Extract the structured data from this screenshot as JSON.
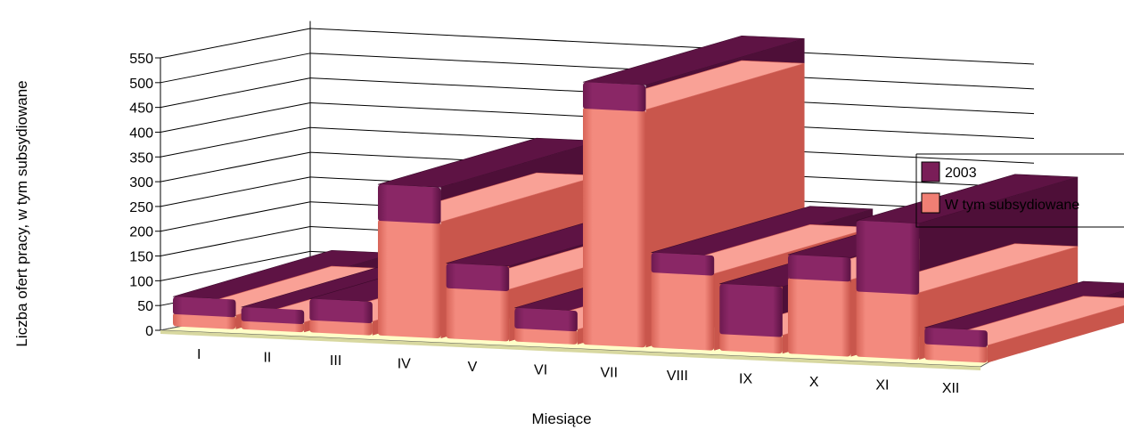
{
  "chart_data": {
    "type": "bar",
    "subtype": "3d-stacked-depth",
    "categories": [
      "I",
      "II",
      "III",
      "IV",
      "V",
      "VI",
      "VII",
      "VIII",
      "IX",
      "X",
      "XI",
      "XII"
    ],
    "series": [
      {
        "name": "2003",
        "values": [
          60,
          45,
          68,
          305,
          152,
          68,
          530,
          192,
          135,
          200,
          275,
          65
        ]
      },
      {
        "name": "W tym subsydiowane",
        "values": [
          28,
          20,
          28,
          235,
          105,
          30,
          480,
          155,
          37,
          155,
          135,
          35
        ]
      }
    ],
    "xlabel": "Miesiące",
    "ylabel": "Liczba ofert pracy, w tym subsydiowane",
    "ylim": [
      0,
      550
    ],
    "yticks": [
      "0",
      "50",
      "100",
      "150",
      "200",
      "250",
      "300",
      "350",
      "400",
      "450",
      "500",
      "550"
    ],
    "grid": true,
    "legend_position": "right",
    "colors": {
      "2003": "#7a1e58",
      "W tym subsydiowane": "#f07f74",
      "floor": "#ffffc8"
    }
  }
}
